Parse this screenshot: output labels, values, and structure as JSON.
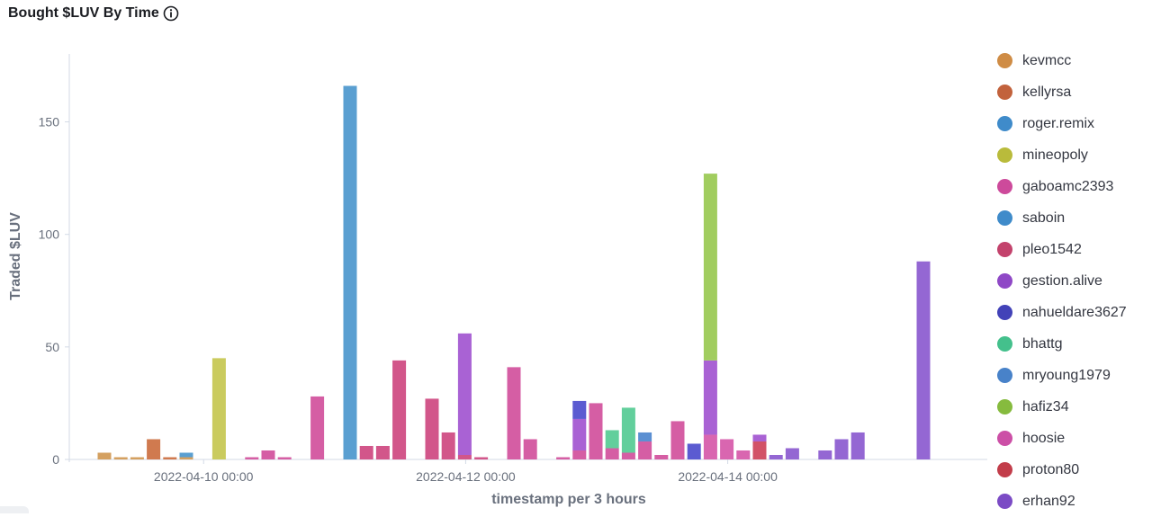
{
  "title": "Bought $LUV By Time",
  "icons": {
    "info": "info-icon"
  },
  "chart_data": {
    "type": "bar",
    "stacked": true,
    "title": "Bought $LUV By Time",
    "xlabel": "timestamp per 3 hours",
    "ylabel": "Traded $LUV",
    "ylim": [
      0,
      180
    ],
    "y_ticks": [
      0,
      50,
      100,
      150
    ],
    "x_tick_labels": [
      "2022-04-10 00:00",
      "2022-04-12 00:00",
      "2022-04-14 00:00"
    ],
    "x_tick_slots": [
      6,
      22,
      38
    ],
    "legend_position": "right",
    "grid": false,
    "series": [
      {
        "name": "kevmcc",
        "color": "#d4a060"
      },
      {
        "name": "kellyrsa",
        "color": "#d07a4f"
      },
      {
        "name": "roger.remix",
        "color": "#5a9fd1"
      },
      {
        "name": "mineopoly",
        "color": "#cacb5e"
      },
      {
        "name": "gaboamc2393",
        "color": "#d55ea4"
      },
      {
        "name": "saboin",
        "color": "#5a9fd1"
      },
      {
        "name": "pleo1542",
        "color": "#d2568a"
      },
      {
        "name": "gestion.alive",
        "color": "#a962d4"
      },
      {
        "name": "nahueldare3627",
        "color": "#5b5bd1"
      },
      {
        "name": "bhattg",
        "color": "#62cf9c"
      },
      {
        "name": "mryoung1979",
        "color": "#5b8fd2"
      },
      {
        "name": "hafiz34",
        "color": "#a1cd5f"
      },
      {
        "name": "hoosie",
        "color": "#d966b0"
      },
      {
        "name": "proton80",
        "color": "#d25267"
      },
      {
        "name": "erhan92",
        "color": "#9467d3"
      }
    ],
    "legend_colors": [
      "#cf8c45",
      "#c2623c",
      "#3f8bca",
      "#b9bb3b",
      "#cd4a9b",
      "#3f8bca",
      "#c3426c",
      "#8f48c6",
      "#4242b8",
      "#44c08c",
      "#4882c9",
      "#86bb3e",
      "#cc4fa6",
      "#c23d4a",
      "#7b4bc5"
    ],
    "bars": [
      {
        "slot": 0,
        "segments": [
          {
            "s": "kevmcc",
            "v": 3
          }
        ]
      },
      {
        "slot": 1,
        "segments": [
          {
            "s": "kevmcc",
            "v": 1
          }
        ]
      },
      {
        "slot": 2,
        "segments": [
          {
            "s": "kevmcc",
            "v": 1
          }
        ]
      },
      {
        "slot": 3,
        "segments": [
          {
            "s": "kellyrsa",
            "v": 9
          }
        ]
      },
      {
        "slot": 4,
        "segments": [
          {
            "s": "kellyrsa",
            "v": 1
          }
        ]
      },
      {
        "slot": 5,
        "segments": [
          {
            "s": "kevmcc",
            "v": 1
          },
          {
            "s": "roger.remix",
            "v": 2
          }
        ]
      },
      {
        "slot": 7,
        "segments": [
          {
            "s": "mineopoly",
            "v": 45
          }
        ]
      },
      {
        "slot": 9,
        "segments": [
          {
            "s": "gaboamc2393",
            "v": 1
          }
        ]
      },
      {
        "slot": 10,
        "segments": [
          {
            "s": "gaboamc2393",
            "v": 4
          }
        ]
      },
      {
        "slot": 11,
        "segments": [
          {
            "s": "gaboamc2393",
            "v": 1
          }
        ]
      },
      {
        "slot": 13,
        "segments": [
          {
            "s": "gaboamc2393",
            "v": 28
          }
        ]
      },
      {
        "slot": 15,
        "segments": [
          {
            "s": "saboin",
            "v": 166
          }
        ]
      },
      {
        "slot": 16,
        "segments": [
          {
            "s": "pleo1542",
            "v": 6
          }
        ]
      },
      {
        "slot": 17,
        "segments": [
          {
            "s": "pleo1542",
            "v": 6
          }
        ]
      },
      {
        "slot": 18,
        "segments": [
          {
            "s": "pleo1542",
            "v": 44
          }
        ]
      },
      {
        "slot": 20,
        "segments": [
          {
            "s": "pleo1542",
            "v": 27
          }
        ]
      },
      {
        "slot": 21,
        "segments": [
          {
            "s": "pleo1542",
            "v": 12
          }
        ]
      },
      {
        "slot": 22,
        "segments": [
          {
            "s": "pleo1542",
            "v": 2
          },
          {
            "s": "gestion.alive",
            "v": 54
          }
        ]
      },
      {
        "slot": 23,
        "segments": [
          {
            "s": "pleo1542",
            "v": 1
          }
        ]
      },
      {
        "slot": 25,
        "segments": [
          {
            "s": "gaboamc2393",
            "v": 41
          }
        ]
      },
      {
        "slot": 26,
        "segments": [
          {
            "s": "gaboamc2393",
            "v": 9
          }
        ]
      },
      {
        "slot": 28,
        "segments": [
          {
            "s": "gaboamc2393",
            "v": 1
          }
        ]
      },
      {
        "slot": 29,
        "segments": [
          {
            "s": "gaboamc2393",
            "v": 4
          },
          {
            "s": "gestion.alive",
            "v": 14
          },
          {
            "s": "nahueldare3627",
            "v": 8
          }
        ]
      },
      {
        "slot": 30,
        "segments": [
          {
            "s": "gaboamc2393",
            "v": 25
          }
        ]
      },
      {
        "slot": 31,
        "segments": [
          {
            "s": "gaboamc2393",
            "v": 5
          },
          {
            "s": "bhattg",
            "v": 8
          }
        ]
      },
      {
        "slot": 32,
        "segments": [
          {
            "s": "gaboamc2393",
            "v": 3
          },
          {
            "s": "bhattg",
            "v": 20
          }
        ]
      },
      {
        "slot": 33,
        "segments": [
          {
            "s": "gaboamc2393",
            "v": 8
          },
          {
            "s": "mryoung1979",
            "v": 4
          }
        ]
      },
      {
        "slot": 34,
        "segments": [
          {
            "s": "gaboamc2393",
            "v": 2
          }
        ]
      },
      {
        "slot": 35,
        "segments": [
          {
            "s": "gaboamc2393",
            "v": 17
          }
        ]
      },
      {
        "slot": 36,
        "segments": [
          {
            "s": "nahueldare3627",
            "v": 7
          }
        ]
      },
      {
        "slot": 37,
        "segments": [
          {
            "s": "hoosie",
            "v": 11
          },
          {
            "s": "gestion.alive",
            "v": 33
          },
          {
            "s": "hafiz34",
            "v": 83
          }
        ]
      },
      {
        "slot": 38,
        "segments": [
          {
            "s": "hoosie",
            "v": 9
          }
        ]
      },
      {
        "slot": 39,
        "segments": [
          {
            "s": "hoosie",
            "v": 4
          }
        ]
      },
      {
        "slot": 40,
        "segments": [
          {
            "s": "proton80",
            "v": 8
          },
          {
            "s": "gestion.alive",
            "v": 3
          }
        ]
      },
      {
        "slot": 41,
        "segments": [
          {
            "s": "erhan92",
            "v": 2
          }
        ]
      },
      {
        "slot": 42,
        "segments": [
          {
            "s": "erhan92",
            "v": 5
          }
        ]
      },
      {
        "slot": 44,
        "segments": [
          {
            "s": "erhan92",
            "v": 4
          }
        ]
      },
      {
        "slot": 45,
        "segments": [
          {
            "s": "erhan92",
            "v": 9
          }
        ]
      },
      {
        "slot": 46,
        "segments": [
          {
            "s": "erhan92",
            "v": 12
          }
        ]
      },
      {
        "slot": 50,
        "segments": [
          {
            "s": "erhan92",
            "v": 88
          }
        ]
      }
    ]
  }
}
